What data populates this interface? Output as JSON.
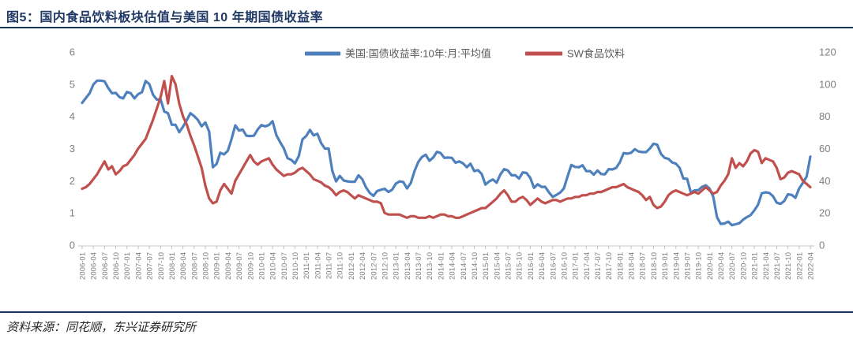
{
  "title": "图5：国内食品饮料板块估值与美国 10 年期国债收益率",
  "source": "资料来源：同花顺，东兴证券研究所",
  "colors": {
    "title_text": "#1F3864",
    "rule": "#17365D",
    "series_blue": "#4E80BD",
    "series_red": "#C0504D",
    "axis_text": "#808080",
    "legend_text": "#595959",
    "axis_line": "#D9D9D9",
    "tick_mark": "#BFBFBF"
  },
  "chart_data": {
    "type": "line",
    "title": "",
    "x_start": "2006-01",
    "x_end": "2022-04",
    "x_frequency": "monthly",
    "grid": false,
    "legend_position": "top-center",
    "left_axis": {
      "min": 0,
      "max": 6,
      "ticks": [
        0,
        1,
        2,
        3,
        4,
        5,
        6
      ]
    },
    "right_axis": {
      "min": 0,
      "max": 120,
      "ticks": [
        0,
        20,
        40,
        60,
        80,
        100,
        120
      ]
    },
    "x_tick_labels": [
      "2006-01",
      "2006-04",
      "2006-07",
      "2006-10",
      "2007-01",
      "2007-04",
      "2007-07",
      "2007-10",
      "2008-01",
      "2008-04",
      "2008-07",
      "2008-10",
      "2009-01",
      "2009-04",
      "2009-07",
      "2009-10",
      "2010-01",
      "2010-04",
      "2010-07",
      "2010-10",
      "2011-01",
      "2011-04",
      "2011-07",
      "2011-10",
      "2012-01",
      "2012-04",
      "2012-07",
      "2012-10",
      "2013-01",
      "2013-04",
      "2013-07",
      "2013-10",
      "2014-01",
      "2014-04",
      "2014-07",
      "2014-10",
      "2015-01",
      "2015-04",
      "2015-07",
      "2015-10",
      "2016-01",
      "2016-04",
      "2016-07",
      "2016-10",
      "2017-01",
      "2017-04",
      "2017-07",
      "2017-10",
      "2018-01",
      "2018-04",
      "2018-07",
      "2018-10",
      "2019-01",
      "2019-04",
      "2019-07",
      "2019-10",
      "2020-01",
      "2020-04",
      "2020-07",
      "2020-10",
      "2021-01",
      "2021-04",
      "2021-07",
      "2021-10",
      "2022-01",
      "2022-04"
    ],
    "series": [
      {
        "name": "美国:国债收益率:10年:月:平均值",
        "axis": "left",
        "color": "#4E80BD",
        "values": [
          4.42,
          4.57,
          4.72,
          4.99,
          5.11,
          5.11,
          5.09,
          4.88,
          4.72,
          4.73,
          4.6,
          4.56,
          4.76,
          4.72,
          4.56,
          4.69,
          4.75,
          5.1,
          5.0,
          4.67,
          4.52,
          4.53,
          4.15,
          4.1,
          3.74,
          3.74,
          3.51,
          3.68,
          3.88,
          4.1,
          4.01,
          3.89,
          3.69,
          3.81,
          3.53,
          2.42,
          2.52,
          2.87,
          2.82,
          2.93,
          3.29,
          3.72,
          3.56,
          3.59,
          3.4,
          3.39,
          3.4,
          3.59,
          3.73,
          3.69,
          3.73,
          3.85,
          3.42,
          3.2,
          3.01,
          2.7,
          2.65,
          2.54,
          2.76,
          3.29,
          3.39,
          3.58,
          3.41,
          3.46,
          3.17,
          3.0,
          3.0,
          2.3,
          1.98,
          2.15,
          2.01,
          1.98,
          1.97,
          1.97,
          2.17,
          2.05,
          1.8,
          1.62,
          1.53,
          1.68,
          1.72,
          1.75,
          1.65,
          1.72,
          1.91,
          1.98,
          1.96,
          1.76,
          1.93,
          2.3,
          2.58,
          2.74,
          2.81,
          2.62,
          2.72,
          2.9,
          2.86,
          2.71,
          2.72,
          2.71,
          2.56,
          2.6,
          2.54,
          2.42,
          2.53,
          2.3,
          2.33,
          2.21,
          1.88,
          1.98,
          2.04,
          1.94,
          2.2,
          2.36,
          2.32,
          2.17,
          2.17,
          2.07,
          2.26,
          2.24,
          2.09,
          1.78,
          1.89,
          1.81,
          1.81,
          1.64,
          1.5,
          1.56,
          1.63,
          1.76,
          2.14,
          2.49,
          2.43,
          2.42,
          2.48,
          2.3,
          2.3,
          2.19,
          2.32,
          2.21,
          2.2,
          2.36,
          2.35,
          2.4,
          2.58,
          2.86,
          2.84,
          2.87,
          2.98,
          2.91,
          2.89,
          2.89,
          3.0,
          3.15,
          3.12,
          2.83,
          2.71,
          2.68,
          2.57,
          2.53,
          2.4,
          2.07,
          2.06,
          1.63,
          1.7,
          1.71,
          1.81,
          1.86,
          1.76,
          1.5,
          0.87,
          0.66,
          0.67,
          0.73,
          0.62,
          0.65,
          0.68,
          0.79,
          0.87,
          0.93,
          1.08,
          1.26,
          1.61,
          1.64,
          1.62,
          1.52,
          1.32,
          1.28,
          1.37,
          1.58,
          1.56,
          1.47,
          1.76,
          1.93,
          2.13,
          2.75
        ]
      },
      {
        "name": "SW食品饮料",
        "axis": "right",
        "color": "#C0504D",
        "values": [
          35,
          36,
          38,
          41,
          44,
          48,
          52,
          47,
          49,
          44,
          46,
          49,
          50,
          53,
          56,
          60,
          63,
          66,
          72,
          78,
          85,
          92,
          102,
          88,
          105,
          100,
          88,
          80,
          75,
          68,
          62,
          55,
          48,
          37,
          29,
          26,
          27,
          34,
          38,
          35,
          32,
          40,
          44,
          48,
          52,
          56,
          52,
          50,
          52,
          53,
          54,
          50,
          47,
          45,
          43,
          44,
          44,
          45,
          47,
          48,
          46,
          44,
          41,
          40,
          39,
          37,
          36,
          34,
          31,
          33,
          34,
          33,
          31,
          29,
          31,
          30,
          29,
          28,
          27,
          27,
          26,
          20,
          19,
          19,
          19,
          19,
          18,
          17,
          18,
          18,
          17,
          17,
          17,
          18,
          17,
          18,
          19,
          19,
          18,
          18,
          17,
          17,
          18,
          19,
          20,
          21,
          22,
          23,
          23,
          25,
          27,
          29,
          32,
          34,
          31,
          27,
          27,
          29,
          30,
          28,
          25,
          27,
          29,
          27,
          26,
          27,
          28,
          28,
          27,
          28,
          29,
          29,
          30,
          30,
          31,
          31,
          32,
          32,
          33,
          33,
          34,
          35,
          36,
          36,
          37,
          38,
          36,
          35,
          34,
          33,
          31,
          28,
          30,
          25,
          23,
          24,
          27,
          31,
          33,
          34,
          33,
          32,
          31,
          32,
          33,
          32,
          34,
          36,
          34,
          32,
          33,
          37,
          40,
          44,
          54,
          48,
          51,
          49,
          52,
          57,
          59,
          58,
          51,
          54,
          53,
          52,
          48,
          41,
          42,
          45,
          46,
          45,
          44,
          40,
          38,
          36
        ]
      }
    ]
  }
}
